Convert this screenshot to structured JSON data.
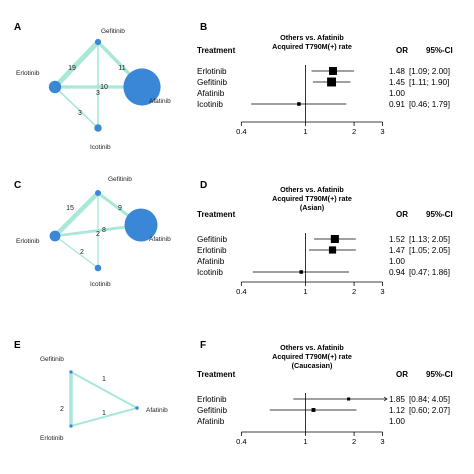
{
  "panels": [
    {
      "network": {
        "label": "A",
        "nodes": [
          {
            "id": "gef",
            "name": "Gefitinib",
            "size": 1
          },
          {
            "id": "erl",
            "name": "Erlotinib",
            "size": 2
          },
          {
            "id": "afa",
            "name": "Afatinib",
            "size": 6
          },
          {
            "id": "ico",
            "name": "Icotinib",
            "size": 1.2
          }
        ],
        "edges": [
          {
            "from": "gef",
            "to": "erl",
            "n": "19"
          },
          {
            "from": "gef",
            "to": "afa",
            "n": "11"
          },
          {
            "from": "erl",
            "to": "afa",
            "n": "10"
          },
          {
            "from": "gef",
            "to": "ico",
            "n": "3"
          },
          {
            "from": "erl",
            "to": "ico",
            "n": "3"
          }
        ]
      },
      "forest": {
        "label": "B",
        "title_lines": [
          "Others vs. Afatinib",
          "Acquired T790M(+) rate"
        ],
        "header": {
          "treatment": "Treatment",
          "or": "OR",
          "ci": "95%-CI"
        },
        "rows": [
          {
            "name": "Erlotinib",
            "or": 1.48,
            "lo": 1.09,
            "hi": 2.0,
            "or_text": "1.48",
            "ci_text": "[1.09; 2.00]"
          },
          {
            "name": "Gefitinib",
            "or": 1.45,
            "lo": 1.11,
            "hi": 1.9,
            "or_text": "1.45",
            "ci_text": "[1.11; 1.90]"
          },
          {
            "name": "Afatinib",
            "or": null,
            "lo": null,
            "hi": null,
            "or_text": "1.00",
            "ci_text": ""
          },
          {
            "name": "Icotinib",
            "or": 0.91,
            "lo": 0.46,
            "hi": 1.79,
            "or_text": "0.91",
            "ci_text": "[0.46; 1.79]"
          }
        ],
        "ticks": [
          0.4,
          1,
          2,
          3
        ],
        "tick_labels": [
          "0.4",
          "1",
          "2",
          "3"
        ],
        "xlim": [
          0.35,
          3.2
        ]
      }
    },
    {
      "network": {
        "label": "C",
        "nodes": [
          {
            "id": "gef",
            "name": "Gefitinib",
            "size": 1
          },
          {
            "id": "erl",
            "name": "Erlotinib",
            "size": 1.8
          },
          {
            "id": "afa",
            "name": "Afatinib",
            "size": 5.5
          },
          {
            "id": "ico",
            "name": "Icotinib",
            "size": 1.1
          }
        ],
        "edges": [
          {
            "from": "gef",
            "to": "erl",
            "n": "15"
          },
          {
            "from": "gef",
            "to": "afa",
            "n": "9"
          },
          {
            "from": "erl",
            "to": "afa",
            "n": "8"
          },
          {
            "from": "gef",
            "to": "ico",
            "n": "2"
          },
          {
            "from": "erl",
            "to": "ico",
            "n": "2"
          }
        ]
      },
      "forest": {
        "label": "D",
        "title_lines": [
          "Others vs. Afatinib",
          "Acquired T790M(+) rate",
          "(Asian)"
        ],
        "header": {
          "treatment": "Treatment",
          "or": "OR",
          "ci": "95%-CI"
        },
        "rows": [
          {
            "name": "Gefitinib",
            "or": 1.52,
            "lo": 1.13,
            "hi": 2.05,
            "or_text": "1.52",
            "ci_text": "[1.13; 2.05]"
          },
          {
            "name": "Erlotinib",
            "or": 1.47,
            "lo": 1.05,
            "hi": 2.05,
            "or_text": "1.47",
            "ci_text": "[1.05; 2.05]"
          },
          {
            "name": "Afatinib",
            "or": null,
            "lo": null,
            "hi": null,
            "or_text": "1.00",
            "ci_text": ""
          },
          {
            "name": "Icotinib",
            "or": 0.94,
            "lo": 0.47,
            "hi": 1.86,
            "or_text": "0.94",
            "ci_text": "[0.47; 1.86]"
          }
        ],
        "ticks": [
          0.4,
          1,
          2,
          3
        ],
        "tick_labels": [
          "0.4",
          "1",
          "2",
          "3"
        ],
        "xlim": [
          0.35,
          3.2
        ]
      }
    },
    {
      "network": {
        "label": "E",
        "nodes": [
          {
            "id": "gef",
            "name": "Gefitinib",
            "size": 0.7
          },
          {
            "id": "erl",
            "name": "Erlotinib",
            "size": 0.7
          },
          {
            "id": "afa",
            "name": "Afatinib",
            "size": 0.8
          }
        ],
        "edges": [
          {
            "from": "gef",
            "to": "erl",
            "n": "2"
          },
          {
            "from": "gef",
            "to": "afa",
            "n": "1"
          },
          {
            "from": "erl",
            "to": "afa",
            "n": "1"
          }
        ]
      },
      "forest": {
        "label": "F",
        "title_lines": [
          "Others vs. Afatinib",
          "Acquired T790M(+) rate",
          "(Caucasian)"
        ],
        "header": {
          "treatment": "Treatment",
          "or": "OR",
          "ci": "95%-CI"
        },
        "rows": [
          {
            "name": "Erlotinib",
            "or": 1.85,
            "lo": 0.84,
            "hi": 4.05,
            "or_text": "1.85",
            "ci_text": "[0.84; 4.05]"
          },
          {
            "name": "Gefitinib",
            "or": 1.12,
            "lo": 0.6,
            "hi": 2.07,
            "or_text": "1.12",
            "ci_text": "[0.60; 2.07]"
          },
          {
            "name": "Afatinib",
            "or": null,
            "lo": null,
            "hi": null,
            "or_text": "1.00",
            "ci_text": ""
          }
        ],
        "ticks": [
          0.4,
          1,
          2,
          3
        ],
        "tick_labels": [
          "0.4",
          "1",
          "2",
          "3"
        ],
        "xlim": [
          0.35,
          3.2
        ]
      }
    }
  ],
  "colors": {
    "node": "#3a87d8",
    "edge": "#a8e8d8",
    "square": "#000000",
    "line": "#000000"
  },
  "chart_data": [
    {
      "type": "scatter",
      "panel": "B",
      "scale": "log",
      "title": "Others vs. Afatinib Acquired T790M(+) rate",
      "categories": [
        "Erlotinib",
        "Gefitinib",
        "Afatinib",
        "Icotinib"
      ],
      "values": [
        1.48,
        1.45,
        1.0,
        0.91
      ],
      "ci_low": [
        1.09,
        1.11,
        null,
        0.46
      ],
      "ci_high": [
        2.0,
        1.9,
        null,
        1.79
      ]
    },
    {
      "type": "scatter",
      "panel": "D",
      "scale": "log",
      "title": "Others vs. Afatinib Acquired T790M(+) rate (Asian)",
      "categories": [
        "Gefitinib",
        "Erlotinib",
        "Afatinib",
        "Icotinib"
      ],
      "values": [
        1.52,
        1.47,
        1.0,
        0.94
      ],
      "ci_low": [
        1.13,
        1.05,
        null,
        0.47
      ],
      "ci_high": [
        2.05,
        2.05,
        null,
        1.86
      ]
    },
    {
      "type": "scatter",
      "panel": "F",
      "scale": "log",
      "title": "Others vs. Afatinib Acquired T790M(+) rate (Caucasian)",
      "categories": [
        "Erlotinib",
        "Gefitinib",
        "Afatinib"
      ],
      "values": [
        1.85,
        1.12,
        1.0
      ],
      "ci_low": [
        0.84,
        0.6,
        null
      ],
      "ci_high": [
        4.05,
        2.07,
        null
      ]
    }
  ]
}
